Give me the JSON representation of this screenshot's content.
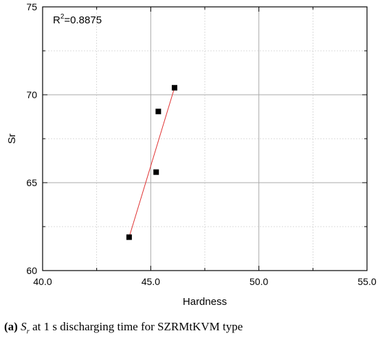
{
  "chart_data": {
    "type": "scatter",
    "xlabel": "Hardness",
    "ylabel": "Sr",
    "xlim": [
      40.0,
      55.0
    ],
    "ylim": [
      60,
      75
    ],
    "xticks": [
      40.0,
      45.0,
      50.0,
      55.0
    ],
    "xtick_labels": [
      "40.0",
      "45.0",
      "50.0",
      "55.0"
    ],
    "yticks": [
      60,
      65,
      70,
      75
    ],
    "ytick_labels": [
      "60",
      "65",
      "70",
      "75"
    ],
    "grid": true,
    "points": [
      {
        "x": 44.0,
        "y": 61.9
      },
      {
        "x": 45.25,
        "y": 65.6
      },
      {
        "x": 45.35,
        "y": 69.05
      },
      {
        "x": 46.1,
        "y": 70.4
      }
    ],
    "fit_line": {
      "x": [
        44.0,
        46.1
      ],
      "y": [
        61.9,
        70.4
      ]
    },
    "annotation": {
      "prefix": "R",
      "sup": "2",
      "suffix": "=0.8875"
    },
    "marker_color": "#000000",
    "fit_color": "#e03030"
  },
  "caption": {
    "label": "(a)",
    "symbol": "S",
    "subscript": "r",
    "text": "at 1 s discharging time for SZRMtKVM type"
  }
}
